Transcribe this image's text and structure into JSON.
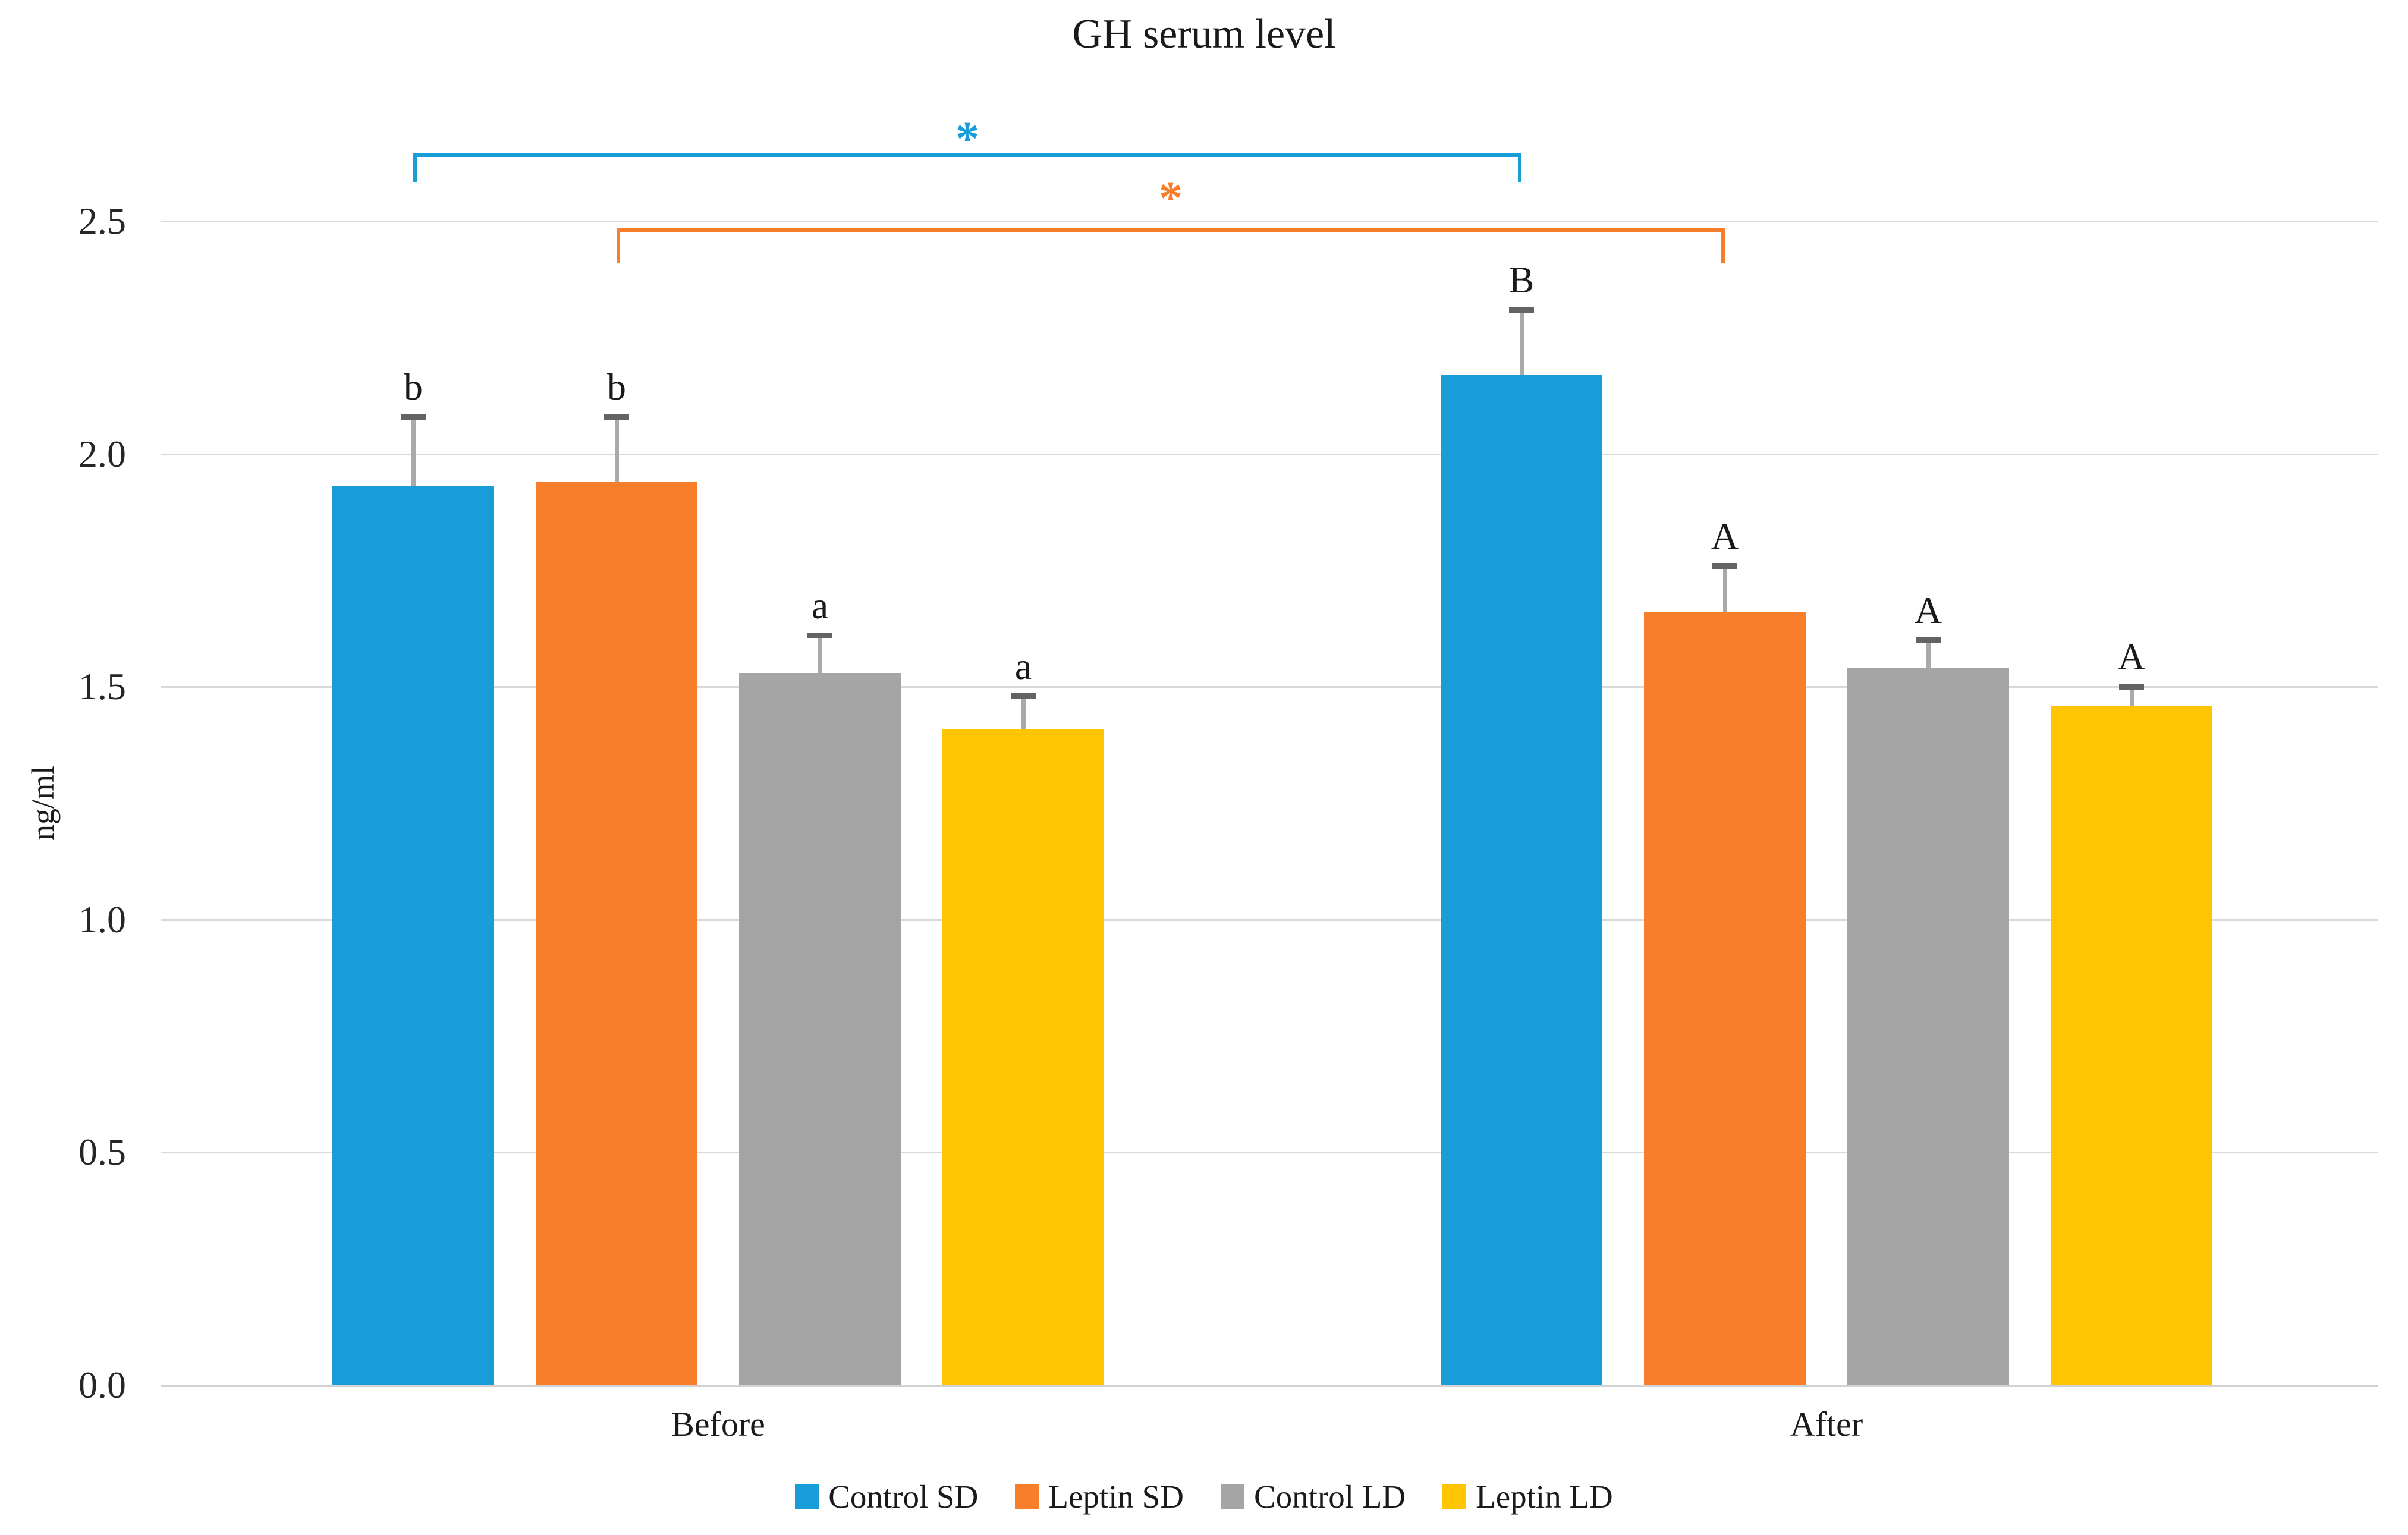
{
  "title": "GH serum level",
  "y_axis": {
    "label": "ng/ml",
    "ticks": [
      {
        "label": "2.5",
        "value": 2.5
      },
      {
        "label": "2.0",
        "value": 2.0
      },
      {
        "label": "1.5",
        "value": 1.5
      },
      {
        "label": "1.0",
        "value": 1.0
      },
      {
        "label": "0.5",
        "value": 0.5
      },
      {
        "label": "0.0",
        "value": 0.0
      }
    ]
  },
  "chart_data": {
    "type": "bar",
    "title": "GH serum level",
    "xlabel": "",
    "ylabel": "ng/ml",
    "ylim": [
      0,
      2.5
    ],
    "ytick_step": 0.5,
    "grid": true,
    "legend_position": "bottom",
    "categories": [
      "Before",
      "After"
    ],
    "series": [
      {
        "name": "Control SD",
        "color": "#199DD8",
        "values": [
          1.93,
          2.17
        ],
        "errors_plus": [
          0.15,
          0.14
        ],
        "bar_labels": [
          "b",
          "B"
        ]
      },
      {
        "name": "Leptin SD",
        "color": "#F87E2B",
        "values": [
          1.94,
          1.66
        ],
        "errors_plus": [
          0.14,
          0.1
        ],
        "bar_labels": [
          "b",
          "A"
        ]
      },
      {
        "name": "Control LD",
        "color": "#A5A5A5",
        "values": [
          1.53,
          1.54
        ],
        "errors_plus": [
          0.08,
          0.06
        ],
        "bar_labels": [
          "a",
          "A"
        ]
      },
      {
        "name": "Leptin LD",
        "color": "#FFC402",
        "values": [
          1.41,
          1.46
        ],
        "errors_plus": [
          0.07,
          0.04
        ],
        "bar_labels": [
          "a",
          "A"
        ]
      }
    ],
    "significance_brackets": [
      {
        "series": "Control SD",
        "symbol": "*",
        "connects": [
          "Before",
          "After"
        ],
        "color": "#199DD8"
      },
      {
        "series": "Leptin SD",
        "symbol": "*",
        "connects": [
          "Before",
          "After"
        ],
        "color": "#F87E2B"
      }
    ]
  }
}
